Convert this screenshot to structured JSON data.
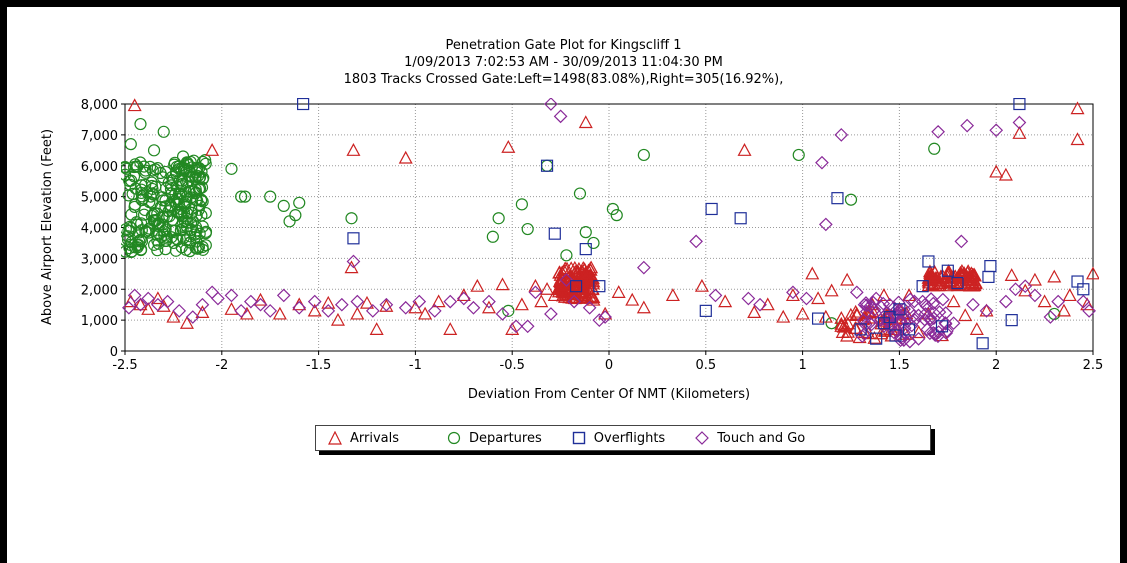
{
  "chart_data": {
    "type": "scatter",
    "title": "Penetration Gate Plot for Kingscliff 1",
    "subtitle_lines": [
      "1/09/2013 7:02:53 AM - 30/09/2013 11:04:30 PM",
      "1803 Tracks Crossed Gate:Left=1498(83.08%),Right=305(16.92%),"
    ],
    "xlabel": "Deviation From Center Of NMT (Kilometers)",
    "ylabel": "Above Airport Elevation (Feet)",
    "xlim": [
      -2.5,
      2.5
    ],
    "ylim": [
      0,
      8000
    ],
    "xticks": [
      "-2.5",
      "-2",
      "-1.5",
      "-1",
      "-0.5",
      "0",
      "0.5",
      "1",
      "1.5",
      "2",
      "2.5"
    ],
    "yticks": [
      "0",
      "1,000",
      "2,000",
      "3,000",
      "4,000",
      "5,000",
      "6,000",
      "7,000",
      "8,000"
    ],
    "grid": true,
    "legend_position": "bottom",
    "series": [
      {
        "name": "Arrivals",
        "marker": "triangle",
        "color": "#cc2222",
        "points": [
          [
            -2.45,
            7950
          ],
          [
            -2.47,
            1600
          ],
          [
            -2.42,
            1500
          ],
          [
            -2.38,
            1350
          ],
          [
            -2.33,
            1700
          ],
          [
            -2.3,
            1450
          ],
          [
            -2.25,
            1100
          ],
          [
            -2.18,
            900
          ],
          [
            -2.1,
            1250
          ],
          [
            -2.05,
            6500
          ],
          [
            -1.95,
            1350
          ],
          [
            -1.87,
            1200
          ],
          [
            -1.8,
            1650
          ],
          [
            -1.7,
            1200
          ],
          [
            -1.6,
            1500
          ],
          [
            -1.52,
            1300
          ],
          [
            -1.45,
            1550
          ],
          [
            -1.4,
            1000
          ],
          [
            -1.33,
            2700
          ],
          [
            -1.32,
            6500
          ],
          [
            -1.3,
            1200
          ],
          [
            -1.25,
            1550
          ],
          [
            -1.2,
            700
          ],
          [
            -1.15,
            1450
          ],
          [
            -1.05,
            6250
          ],
          [
            -1.0,
            1400
          ],
          [
            -0.95,
            1200
          ],
          [
            -0.88,
            1600
          ],
          [
            -0.82,
            700
          ],
          [
            -0.75,
            1800
          ],
          [
            -0.68,
            2100
          ],
          [
            -0.62,
            1400
          ],
          [
            -0.55,
            2150
          ],
          [
            -0.52,
            6600
          ],
          [
            -0.5,
            700
          ],
          [
            -0.45,
            1500
          ],
          [
            -0.38,
            2100
          ],
          [
            -0.35,
            1600
          ],
          [
            -0.32,
            2000
          ],
          [
            -0.28,
            1800
          ],
          [
            -0.12,
            7400
          ],
          [
            -0.08,
            1650
          ],
          [
            -0.02,
            1200
          ],
          [
            0.05,
            1900
          ],
          [
            0.12,
            1650
          ],
          [
            0.18,
            1400
          ],
          [
            0.33,
            1800
          ],
          [
            0.48,
            2100
          ],
          [
            0.6,
            1600
          ],
          [
            0.7,
            6500
          ],
          [
            0.75,
            1250
          ],
          [
            0.82,
            1500
          ],
          [
            0.9,
            1100
          ],
          [
            0.95,
            1800
          ],
          [
            1.0,
            1200
          ],
          [
            1.05,
            2500
          ],
          [
            1.08,
            1700
          ],
          [
            1.12,
            1100
          ],
          [
            1.15,
            1950
          ],
          [
            1.2,
            800
          ],
          [
            1.23,
            2300
          ],
          [
            1.28,
            1200
          ],
          [
            1.32,
            600
          ],
          [
            1.36,
            1500
          ],
          [
            1.42,
            1800
          ],
          [
            1.5,
            1350
          ],
          [
            1.55,
            1800
          ],
          [
            1.6,
            600
          ],
          [
            1.65,
            1200
          ],
          [
            1.72,
            500
          ],
          [
            1.78,
            1600
          ],
          [
            1.84,
            1150
          ],
          [
            1.9,
            700
          ],
          [
            1.95,
            1300
          ],
          [
            2.0,
            5800
          ],
          [
            2.05,
            5700
          ],
          [
            2.08,
            2450
          ],
          [
            2.12,
            7050
          ],
          [
            2.15,
            1950
          ],
          [
            2.2,
            2300
          ],
          [
            2.25,
            1600
          ],
          [
            2.3,
            2400
          ],
          [
            2.35,
            1300
          ],
          [
            2.38,
            1800
          ],
          [
            2.42,
            7850
          ],
          [
            2.42,
            6850
          ],
          [
            2.47,
            1500
          ],
          [
            2.5,
            2500
          ]
        ],
        "clusters": [
          {
            "x": [
              -0.26,
              -0.08
            ],
            "y": [
              1700,
              2700
            ],
            "n": 140
          },
          {
            "x": [
              1.65,
              1.9
            ],
            "y": [
              2100,
              2600
            ],
            "n": 90
          },
          {
            "x": [
              1.2,
              1.55
            ],
            "y": [
              400,
              1300
            ],
            "n": 50
          }
        ]
      },
      {
        "name": "Departures",
        "marker": "circle",
        "color": "#228822",
        "points": [
          [
            -2.47,
            6700
          ],
          [
            -2.42,
            7350
          ],
          [
            -2.35,
            6500
          ],
          [
            -2.3,
            7100
          ],
          [
            -2.22,
            5900
          ],
          [
            -2.2,
            6300
          ],
          [
            -1.95,
            5900
          ],
          [
            -1.9,
            5000
          ],
          [
            -1.88,
            5000
          ],
          [
            -1.75,
            5000
          ],
          [
            -1.68,
            4700
          ],
          [
            -1.65,
            4200
          ],
          [
            -1.62,
            4400
          ],
          [
            -1.6,
            4800
          ],
          [
            -1.33,
            4300
          ],
          [
            -0.6,
            3700
          ],
          [
            -0.57,
            4300
          ],
          [
            -0.52,
            1300
          ],
          [
            -0.45,
            4750
          ],
          [
            -0.42,
            3950
          ],
          [
            -0.32,
            6000
          ],
          [
            -0.22,
            3100
          ],
          [
            -0.15,
            5100
          ],
          [
            -0.12,
            3850
          ],
          [
            -0.08,
            3500
          ],
          [
            0.02,
            4600
          ],
          [
            0.04,
            4400
          ],
          [
            0.18,
            6350
          ],
          [
            0.98,
            6350
          ],
          [
            1.15,
            900
          ],
          [
            1.25,
            4900
          ],
          [
            1.68,
            6550
          ],
          [
            2.3,
            1200
          ]
        ],
        "clusters": [
          {
            "x": [
              -2.5,
              -2.08
            ],
            "y": [
              3200,
              6200
            ],
            "n": 260
          }
        ]
      },
      {
        "name": "Overflights",
        "marker": "square",
        "color": "#1f2f99",
        "points": [
          [
            -1.58,
            8000
          ],
          [
            -1.32,
            3650
          ],
          [
            -0.32,
            6000
          ],
          [
            -0.28,
            3800
          ],
          [
            -0.12,
            3300
          ],
          [
            -0.17,
            2100
          ],
          [
            -0.05,
            2100
          ],
          [
            0.5,
            1300
          ],
          [
            0.53,
            4600
          ],
          [
            0.68,
            4300
          ],
          [
            1.08,
            1050
          ],
          [
            1.18,
            4950
          ],
          [
            1.3,
            700
          ],
          [
            1.38,
            400
          ],
          [
            1.42,
            900
          ],
          [
            1.45,
            1100
          ],
          [
            1.48,
            500
          ],
          [
            1.5,
            1350
          ],
          [
            1.55,
            700
          ],
          [
            1.62,
            2100
          ],
          [
            1.65,
            2900
          ],
          [
            1.72,
            800
          ],
          [
            1.75,
            2600
          ],
          [
            1.8,
            2200
          ],
          [
            1.93,
            250
          ],
          [
            1.96,
            2400
          ],
          [
            1.97,
            2750
          ],
          [
            2.08,
            1000
          ],
          [
            2.12,
            8000
          ],
          [
            2.42,
            2250
          ],
          [
            2.45,
            2000
          ]
        ]
      },
      {
        "name": "Touch and Go",
        "marker": "diamond",
        "color": "#8a2a99",
        "points": [
          [
            -2.48,
            1400
          ],
          [
            -2.45,
            1800
          ],
          [
            -2.42,
            1500
          ],
          [
            -2.38,
            1700
          ],
          [
            -2.33,
            1500
          ],
          [
            -2.28,
            1600
          ],
          [
            -2.22,
            1300
          ],
          [
            -2.15,
            1100
          ],
          [
            -2.1,
            1500
          ],
          [
            -2.05,
            1900
          ],
          [
            -2.02,
            1700
          ],
          [
            -1.95,
            1800
          ],
          [
            -1.9,
            1300
          ],
          [
            -1.85,
            1600
          ],
          [
            -1.8,
            1500
          ],
          [
            -1.75,
            1300
          ],
          [
            -1.68,
            1800
          ],
          [
            -1.6,
            1400
          ],
          [
            -1.52,
            1600
          ],
          [
            -1.45,
            1300
          ],
          [
            -1.38,
            1500
          ],
          [
            -1.32,
            2900
          ],
          [
            -1.3,
            1600
          ],
          [
            -1.22,
            1300
          ],
          [
            -1.15,
            1500
          ],
          [
            -1.05,
            1400
          ],
          [
            -0.98,
            1600
          ],
          [
            -0.9,
            1300
          ],
          [
            -0.82,
            1600
          ],
          [
            -0.75,
            1700
          ],
          [
            -0.7,
            1400
          ],
          [
            -0.62,
            1600
          ],
          [
            -0.55,
            1200
          ],
          [
            -0.48,
            800
          ],
          [
            -0.42,
            800
          ],
          [
            -0.38,
            1900
          ],
          [
            -0.3,
            1200
          ],
          [
            -0.25,
            7600
          ],
          [
            -0.22,
            2300
          ],
          [
            -0.18,
            1600
          ],
          [
            -0.1,
            1400
          ],
          [
            -0.05,
            1000
          ],
          [
            -0.02,
            1100
          ],
          [
            0.18,
            2700
          ],
          [
            0.45,
            3550
          ],
          [
            0.55,
            1800
          ],
          [
            0.72,
            1700
          ],
          [
            0.78,
            1500
          ],
          [
            0.95,
            1900
          ],
          [
            1.02,
            1700
          ],
          [
            1.1,
            6100
          ],
          [
            1.12,
            4100
          ],
          [
            1.2,
            7000
          ],
          [
            1.28,
            1900
          ],
          [
            1.32,
            1500
          ],
          [
            1.38,
            1700
          ],
          [
            1.45,
            1500
          ],
          [
            1.52,
            1200
          ],
          [
            1.58,
            1000
          ],
          [
            1.62,
            1600
          ],
          [
            1.7,
            7100
          ],
          [
            1.78,
            900
          ],
          [
            1.82,
            3550
          ],
          [
            1.85,
            7300
          ],
          [
            1.88,
            1500
          ],
          [
            1.95,
            1300
          ],
          [
            2.0,
            7150
          ],
          [
            2.05,
            1600
          ],
          [
            2.1,
            2000
          ],
          [
            2.12,
            7400
          ],
          [
            2.15,
            2100
          ],
          [
            2.2,
            1800
          ],
          [
            2.28,
            1100
          ],
          [
            2.32,
            1600
          ],
          [
            2.45,
            1600
          ],
          [
            2.48,
            1300
          ],
          [
            -0.3,
            8000
          ],
          [
            1.42,
            800
          ],
          [
            1.48,
            1200
          ]
        ],
        "clusters": [
          {
            "x": [
              1.3,
              1.75
            ],
            "y": [
              300,
              1700
            ],
            "n": 70
          }
        ]
      }
    ]
  }
}
